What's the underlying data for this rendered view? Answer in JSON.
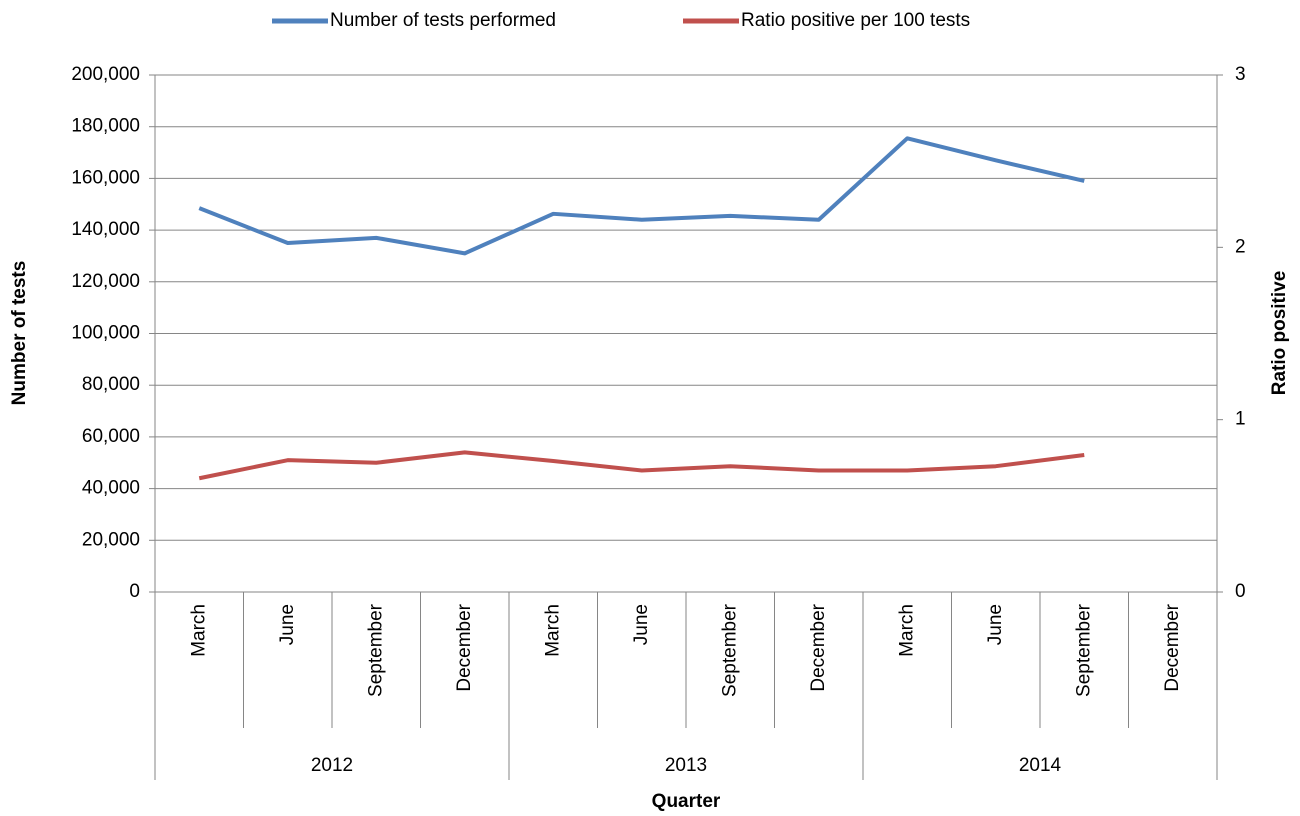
{
  "chart_data": {
    "type": "line",
    "x_title": "Quarter",
    "y_title": "Number of tests",
    "y2_title": "Ratio positive",
    "categories": [
      "March",
      "June",
      "September",
      "December",
      "March",
      "June",
      "September",
      "December",
      "March",
      "June",
      "September",
      "December"
    ],
    "years": [
      "2012",
      "2013",
      "2014"
    ],
    "series": [
      {
        "name": "Number of tests performed",
        "color": "#4f81bd",
        "values": [
          148500,
          135000,
          137000,
          131000,
          146300,
          144000,
          145500,
          144000,
          175500,
          167000,
          159000,
          null
        ]
      },
      {
        "name": "Ratio positive per 100 tests",
        "color": "#c0504d",
        "axis": "y2",
        "values": [
          0.66,
          0.765,
          0.75,
          0.81,
          0.76,
          0.705,
          0.73,
          0.705,
          0.705,
          0.73,
          0.795,
          null
        ]
      }
    ],
    "ylim": [
      0,
      200000
    ],
    "yticks": [
      {
        "value": 0,
        "label": "0"
      },
      {
        "value": 20000,
        "label": "20,000"
      },
      {
        "value": 40000,
        "label": "40,000"
      },
      {
        "value": 60000,
        "label": "60,000"
      },
      {
        "value": 80000,
        "label": "80,000"
      },
      {
        "value": 100000,
        "label": "100,000"
      },
      {
        "value": 120000,
        "label": "120,000"
      },
      {
        "value": 140000,
        "label": "140,000"
      },
      {
        "value": 160000,
        "label": "160,000"
      },
      {
        "value": 180000,
        "label": "180,000"
      },
      {
        "value": 200000,
        "label": "200,000"
      }
    ],
    "y2lim": [
      0,
      3
    ],
    "y2ticks": [
      0,
      1,
      2,
      3
    ],
    "grid": true,
    "legend": "top"
  }
}
